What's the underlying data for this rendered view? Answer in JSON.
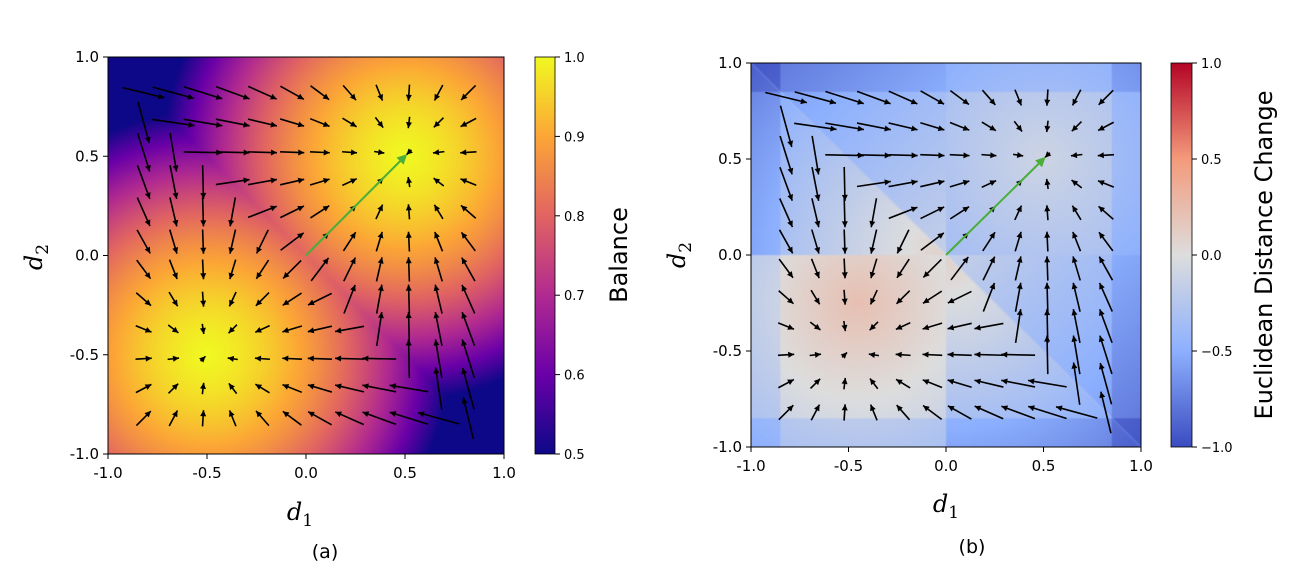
{
  "chart_data": [
    {
      "type": "heatmap",
      "panel_label": "(a)",
      "description_field": "Balance heatmap with quiver field",
      "xlabel_main": "d",
      "xlabel_sub": "1",
      "ylabel_main": "d",
      "ylabel_sub": "2",
      "xlim": [
        -1.0,
        1.0
      ],
      "ylim": [
        -1.0,
        1.0
      ],
      "x_ticks": [
        "-1.0",
        "-0.5",
        "0.0",
        "0.5",
        "1.0"
      ],
      "y_ticks": [
        "-1.0",
        "-0.5",
        "0.0",
        "0.5",
        "1.0"
      ],
      "colormap": "plasma",
      "colorbar": {
        "label": "Balance",
        "range": [
          0.5,
          1.0
        ],
        "ticks": [
          "0.5",
          "0.6",
          "0.7",
          "0.8",
          "0.9",
          "1.0"
        ]
      },
      "maxima": [
        [
          0.5,
          0.5
        ],
        [
          -0.5,
          -0.5
        ]
      ],
      "highlight_arrow": {
        "from": [
          0.0,
          0.0
        ],
        "to": [
          0.5,
          0.5
        ],
        "color": "#4cae3a"
      },
      "quiver_grid": [
        -0.82,
        -0.67,
        -0.52,
        -0.37,
        -0.22,
        -0.07,
        0.07,
        0.22,
        0.37,
        0.52,
        0.67,
        0.82
      ]
    },
    {
      "type": "heatmap",
      "panel_label": "(b)",
      "xlabel_main": "d",
      "xlabel_sub": "1",
      "ylabel_main": "d",
      "ylabel_sub": "2",
      "xlim": [
        -1.0,
        1.0
      ],
      "ylim": [
        -1.0,
        1.0
      ],
      "x_ticks": [
        "-1.0",
        "-0.5",
        "0.0",
        "0.5",
        "1.0"
      ],
      "y_ticks": [
        "-1.0",
        "-0.5",
        "0.0",
        "0.5",
        "1.0"
      ],
      "colormap": "coolwarm",
      "colorbar": {
        "label": "Euclidean Distance Change",
        "range": [
          -1.0,
          1.0
        ],
        "ticks": [
          "−1.0",
          "−0.5",
          "0.0",
          "0.5",
          "1.0"
        ]
      },
      "highlight_arrow": {
        "from": [
          0.0,
          0.0
        ],
        "to": [
          0.5,
          0.5
        ],
        "color": "#4cae3a"
      },
      "quiver_grid": [
        -0.82,
        -0.67,
        -0.52,
        -0.37,
        -0.22,
        -0.07,
        0.07,
        0.22,
        0.37,
        0.52,
        0.67,
        0.82
      ]
    }
  ]
}
